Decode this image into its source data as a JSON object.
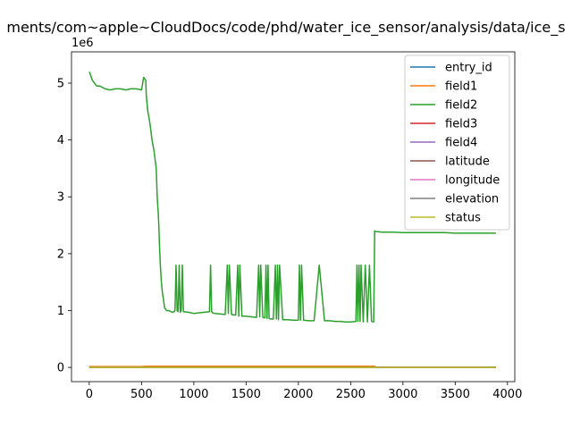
{
  "chart_data": {
    "type": "line",
    "title": "/Users/.../Library/Mobile Documents/com~apple~CloudDocs/code/phd/water_ice_sensor/analysis/data/ice_sensor.csv",
    "title_visible": "ments/com~apple~CloudDocs/code/phd/water_ice_sensor/analysis/data/ice_s",
    "xlabel": "",
    "ylabel": "",
    "y_offset_text": "1e6",
    "xlim": [
      -170,
      4070
    ],
    "ylim": [
      -250000,
      5550000
    ],
    "xticks": [
      0,
      500,
      1000,
      1500,
      2000,
      2500,
      3000,
      3500,
      4000
    ],
    "xtick_labels": [
      "0",
      "500",
      "1000",
      "1500",
      "2000",
      "2500",
      "3000",
      "3500",
      "4000"
    ],
    "yticks": [
      0,
      1000000,
      2000000,
      3000000,
      4000000,
      5000000
    ],
    "ytick_labels": [
      "0",
      "1",
      "2",
      "3",
      "4",
      "5"
    ],
    "grid": false,
    "legend_position": "upper right",
    "series": [
      {
        "name": "entry_id",
        "color": "#1f77b4",
        "x": [
          0,
          3890
        ],
        "y": [
          0,
          3890
        ]
      },
      {
        "name": "field1",
        "color": "#ff7f0e",
        "x": [
          0,
          500,
          550,
          2730,
          2740,
          3890
        ],
        "y": [
          15000,
          16000,
          22000,
          22000,
          0,
          0
        ]
      },
      {
        "name": "field2",
        "color": "#2ca02c",
        "x": [
          0,
          10,
          20,
          30,
          50,
          70,
          100,
          120,
          150,
          200,
          250,
          300,
          350,
          400,
          450,
          500,
          520,
          540,
          545,
          550,
          560,
          570,
          580,
          600,
          620,
          640,
          650,
          660,
          665,
          670,
          680,
          690,
          700,
          710,
          720,
          740,
          760,
          780,
          800,
          820,
          830,
          840,
          850,
          860,
          870,
          880,
          890,
          900,
          950,
          1000,
          1050,
          1100,
          1150,
          1160,
          1170,
          1180,
          1200,
          1250,
          1300,
          1320,
          1330,
          1340,
          1360,
          1400,
          1420,
          1430,
          1440,
          1460,
          1500,
          1550,
          1600,
          1620,
          1630,
          1640,
          1660,
          1680,
          1690,
          1700,
          1710,
          1720,
          1740,
          1760,
          1780,
          1790,
          1800,
          1810,
          1820,
          1850,
          1900,
          1950,
          2000,
          2010,
          2020,
          2030,
          2050,
          2100,
          2150,
          2200,
          2250,
          2300,
          2350,
          2400,
          2450,
          2500,
          2550,
          2560,
          2570,
          2580,
          2590,
          2600,
          2620,
          2640,
          2660,
          2680,
          2700,
          2720,
          2725,
          2730,
          2740,
          2800,
          2900,
          3000,
          3100,
          3200,
          3300,
          3400,
          3500,
          3600,
          3700,
          3800,
          3890
        ],
        "y": [
          5200000,
          5150000,
          5100000,
          5050000,
          5000000,
          4950000,
          4950000,
          4930000,
          4900000,
          4880000,
          4900000,
          4900000,
          4880000,
          4900000,
          4900000,
          4880000,
          5100000,
          5050000,
          4800000,
          4700000,
          4500000,
          4400000,
          4300000,
          4000000,
          3800000,
          3500000,
          3000000,
          2700000,
          2500000,
          2200000,
          1800000,
          1500000,
          1300000,
          1200000,
          1050000,
          1000000,
          1000000,
          980000,
          970000,
          1000000,
          1800000,
          1000000,
          980000,
          1800000,
          970000,
          1000000,
          1800000,
          980000,
          970000,
          950000,
          960000,
          970000,
          980000,
          1800000,
          980000,
          960000,
          950000,
          940000,
          930000,
          1800000,
          950000,
          1800000,
          930000,
          920000,
          1800000,
          900000,
          1800000,
          900000,
          900000,
          890000,
          880000,
          1800000,
          890000,
          1800000,
          880000,
          870000,
          1800000,
          860000,
          1800000,
          860000,
          850000,
          850000,
          1800000,
          850000,
          1800000,
          840000,
          1800000,
          840000,
          840000,
          830000,
          830000,
          1800000,
          830000,
          1800000,
          830000,
          820000,
          820000,
          1800000,
          820000,
          820000,
          810000,
          810000,
          800000,
          800000,
          810000,
          1800000,
          810000,
          1800000,
          810000,
          1800000,
          800000,
          1800000,
          800000,
          1800000,
          810000,
          800000,
          1600000,
          2400000,
          2390000,
          2380000,
          2380000,
          2370000,
          2370000,
          2370000,
          2370000,
          2370000,
          2360000,
          2360000,
          2360000,
          2360000,
          2360000
        ]
      },
      {
        "name": "field3",
        "color": "#d62728",
        "x": [
          0,
          3890
        ],
        "y": [
          0,
          0
        ]
      },
      {
        "name": "field4",
        "color": "#9467bd",
        "x": [
          0,
          3890
        ],
        "y": [
          0,
          0
        ]
      },
      {
        "name": "latitude",
        "color": "#8c564b",
        "x": [
          0,
          3890
        ],
        "y": [
          40,
          40
        ]
      },
      {
        "name": "longitude",
        "color": "#e377c2",
        "x": [
          0,
          3890
        ],
        "y": [
          -105,
          -105
        ]
      },
      {
        "name": "elevation",
        "color": "#7f7f7f",
        "x": [
          0,
          3890
        ],
        "y": [
          1600,
          1600
        ]
      },
      {
        "name": "status",
        "color": "#bcbd22",
        "x": [
          0,
          3890
        ],
        "y": [
          0,
          0
        ]
      }
    ]
  }
}
